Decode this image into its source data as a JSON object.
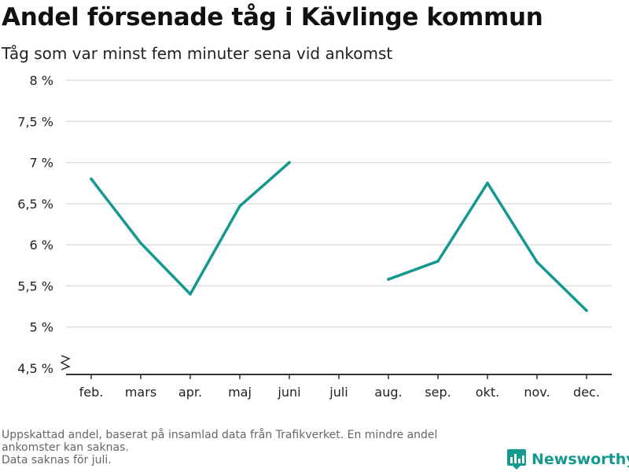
{
  "header": {
    "title": "Andel försenade tåg i Kävlinge kommun",
    "subtitle": "Tåg som var minst fem minuter sena vid ankomst"
  },
  "chart_data": {
    "type": "line",
    "title": "Andel försenade tåg i Kävlinge kommun",
    "subtitle": "Tåg som var minst fem minuter sena vid ankomst",
    "categories": [
      "feb.",
      "mars",
      "apr.",
      "maj",
      "juni",
      "juli",
      "aug.",
      "sep.",
      "okt.",
      "nov.",
      "dec."
    ],
    "series": [
      {
        "values": [
          6.8,
          6.02,
          5.4,
          6.47,
          7.0,
          null,
          5.58,
          5.8,
          6.75,
          5.79,
          5.2
        ]
      }
    ],
    "ylim": [
      4.5,
      8
    ],
    "yticks": [
      4.5,
      5,
      5.5,
      6,
      6.5,
      7,
      7.5,
      8
    ],
    "ytick_labels": [
      "4,5 %",
      "5 %",
      "5,5 %",
      "6 %",
      "6,5 %",
      "7 %",
      "7,5 %",
      "8 %"
    ],
    "grid": true,
    "axis_break": true,
    "line_color": "#14998f",
    "grid_color": "#dddddd",
    "axis_color": "#333333"
  },
  "footnote": {
    "line1": "Uppskattad andel, baserat på insamlad data från Trafikverket. En mindre andel",
    "line2": "ankomster kan saknas.",
    "line3": "Data saknas för juli."
  },
  "brand": {
    "name": "Newsworthy",
    "icon": "newsworthy-logo-icon",
    "color": "#14998f"
  }
}
